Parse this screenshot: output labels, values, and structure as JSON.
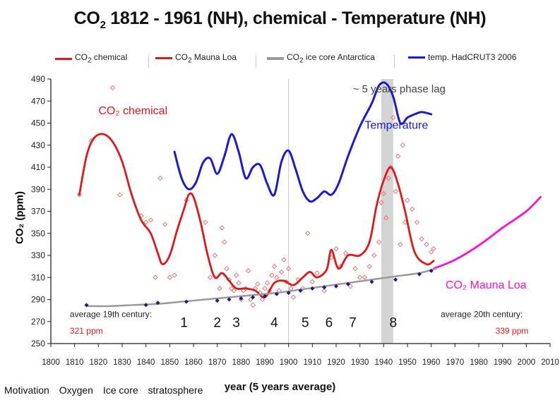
{
  "title": {
    "pre": "CO",
    "sub": "2",
    "post": " 1812 - 1961 (NH), chemical - Temperature (NH)"
  },
  "legend": [
    {
      "label_pre": "CO",
      "label_sub": "2",
      "label_post": " chemical",
      "color": "#e01818",
      "style": "line-marker"
    },
    {
      "label_pre": "CO",
      "label_sub": "2",
      "label_post": "  Mauna Loa",
      "color": "#e01818",
      "style": "line"
    },
    {
      "label_pre": "CO",
      "label_sub": "2",
      "label_post": " ice core Antarctica",
      "color": "#9a9a9a",
      "style": "line"
    },
    {
      "label_pre": "temp. HadCRUT3 2006",
      "label_sub": "",
      "label_post": "",
      "color": "#1a1ad0",
      "style": "line"
    }
  ],
  "bottom_nav": [
    "Motivation",
    "Oxygen",
    "Ice core",
    "stratosphere"
  ],
  "chart_data": {
    "type": "line",
    "xlabel": "year (5 years average)",
    "ylabel": "CO₂ (ppm)",
    "xlim": [
      1800,
      2010
    ],
    "ylim": [
      250,
      490
    ],
    "x_ticks": [
      1800,
      1810,
      1820,
      1830,
      1840,
      1850,
      1860,
      1870,
      1880,
      1890,
      1900,
      1910,
      1920,
      1930,
      1940,
      1950,
      1960,
      1970,
      1980,
      1990,
      2000,
      2010
    ],
    "y_ticks": [
      250,
      270,
      290,
      310,
      330,
      350,
      370,
      390,
      410,
      430,
      450,
      470,
      490
    ],
    "grid": false,
    "legend_position": "top",
    "series": [
      {
        "name": "CO₂ chemical",
        "color": "#e01818",
        "x": [
          1812,
          1815,
          1818,
          1822,
          1826,
          1830,
          1834,
          1838,
          1842,
          1845,
          1847,
          1850,
          1853,
          1856,
          1858,
          1860,
          1863,
          1866,
          1869,
          1872,
          1875,
          1878,
          1882,
          1886,
          1890,
          1894,
          1898,
          1902,
          1906,
          1909,
          1912,
          1916,
          1918,
          1921,
          1925,
          1930,
          1934,
          1937,
          1940,
          1943,
          1946,
          1949,
          1953,
          1958,
          1961
        ],
        "values": [
          385,
          420,
          436,
          440,
          433,
          415,
          385,
          362,
          350,
          332,
          322,
          330,
          352,
          372,
          385,
          383,
          360,
          330,
          310,
          314,
          307,
          300,
          300,
          298,
          292,
          305,
          307,
          303,
          310,
          315,
          310,
          317,
          335,
          318,
          330,
          330,
          342,
          375,
          398,
          410,
          395,
          370,
          333,
          322,
          325
        ]
      },
      {
        "name": "CO₂  Mauna Loa",
        "color": "#ff10d0",
        "x": [
          1961,
          1970,
          1980,
          1990,
          2000,
          2006
        ],
        "values": [
          318,
          326,
          339,
          355,
          370,
          383
        ]
      },
      {
        "name": "CO₂ ice core Antarctica",
        "color": "#9a9a9a",
        "x": [
          1815,
          1825,
          1835,
          1845,
          1855,
          1865,
          1875,
          1885,
          1895,
          1905,
          1915,
          1925,
          1935,
          1945,
          1955,
          1962
        ],
        "values": [
          284,
          284,
          285,
          286,
          288,
          290,
          292,
          294,
          296,
          299,
          302,
          305,
          308,
          311,
          314,
          318
        ]
      },
      {
        "name": "temp. HadCRUT3 2006",
        "color": "#1a1ad0",
        "x": [
          1852,
          1855,
          1858,
          1861,
          1864,
          1867,
          1870,
          1873,
          1876,
          1879,
          1882,
          1885,
          1888,
          1891,
          1894,
          1897,
          1900,
          1903,
          1906,
          1909,
          1912,
          1915,
          1918,
          1921,
          1925,
          1930,
          1935,
          1938,
          1941,
          1944,
          1947,
          1950,
          1953,
          1956,
          1960
        ],
        "values": [
          424,
          400,
          390,
          396,
          414,
          418,
          404,
          420,
          440,
          424,
          400,
          410,
          412,
          395,
          385,
          415,
          425,
          408,
          388,
          379,
          382,
          388,
          385,
          395,
          420,
          447,
          468,
          484,
          486,
          474,
          450,
          455,
          458,
          460,
          458
        ]
      }
    ],
    "scatter_points": {
      "name": "CO₂ chemical measurements",
      "color": "#e07070",
      "x": [
        1812,
        1817,
        1826,
        1829,
        1838,
        1840,
        1842,
        1844,
        1846,
        1848,
        1850,
        1852,
        1857,
        1865,
        1867,
        1869,
        1871,
        1872,
        1873,
        1874,
        1875,
        1876,
        1877,
        1878,
        1879,
        1880,
        1881,
        1882,
        1883,
        1884,
        1885,
        1886,
        1887,
        1888,
        1889,
        1890,
        1891,
        1892,
        1893,
        1894,
        1895,
        1896,
        1897,
        1898,
        1899,
        1900,
        1901,
        1902,
        1904,
        1906,
        1908,
        1910,
        1912,
        1915,
        1918,
        1920,
        1922,
        1924,
        1926,
        1928,
        1930,
        1932,
        1934,
        1936,
        1938,
        1939,
        1940,
        1941,
        1942,
        1943,
        1944,
        1945,
        1946,
        1947,
        1948,
        1949,
        1950,
        1952,
        1954,
        1956,
        1958,
        1960,
        1961
      ],
      "values": [
        385,
        434,
        482,
        385,
        366,
        360,
        362,
        310,
        400,
        358,
        310,
        312,
        380,
        360,
        310,
        330,
        300,
        355,
        342,
        318,
        308,
        300,
        298,
        312,
        305,
        290,
        298,
        300,
        316,
        290,
        285,
        300,
        304,
        296,
        290,
        300,
        305,
        298,
        312,
        320,
        310,
        298,
        315,
        326,
        306,
        318,
        300,
        292,
        308,
        300,
        350,
        306,
        314,
        298,
        328,
        336,
        320,
        332,
        302,
        318,
        310,
        310,
        320,
        330,
        342,
        378,
        386,
        364,
        400,
        410,
        455,
        388,
        420,
        340,
        430,
        360,
        380,
        372,
        360,
        345,
        340,
        333,
        336
      ]
    },
    "ice_core_points": {
      "color": "#1a1a80",
      "x": [
        1815,
        1840,
        1845,
        1857,
        1870,
        1875,
        1880,
        1885,
        1890,
        1895,
        1900,
        1905,
        1910,
        1915,
        1920,
        1925,
        1935,
        1945,
        1955,
        1960
      ],
      "values": [
        285,
        285,
        287,
        288,
        289,
        290,
        291,
        292,
        293,
        295,
        296,
        298,
        300,
        301,
        302,
        304,
        306,
        308,
        313,
        316
      ]
    },
    "highlight_band": {
      "x_from": 1939,
      "x_to": 1944,
      "color": "#cccccc"
    },
    "reference_line": {
      "x": 1900,
      "color": "#cfcfcf"
    },
    "annotations": [
      {
        "text": "CO₂ chemical",
        "x": 1820,
        "y": 458,
        "color": "#e01818",
        "size": 16
      },
      {
        "text": "Temperature",
        "x": 1932,
        "y": 445,
        "color": "#1a1ad0",
        "size": 16
      },
      {
        "text": "~ 5 years phase lag",
        "x": 1927,
        "y": 478,
        "color": "#444444",
        "size": 15
      },
      {
        "text": "CO₂ Mauna Loa",
        "x": 1966,
        "y": 300,
        "color": "#ff10d0",
        "size": 16
      },
      {
        "text": "average 19th century:",
        "x": 1808,
        "y": 274,
        "color": "#222222",
        "size": 12
      },
      {
        "text": "321 ppm",
        "x": 1808,
        "y": 259,
        "color": "#e01818",
        "size": 12
      },
      {
        "text": "average 20th century:",
        "x": 1964,
        "y": 274,
        "color": "#222222",
        "size": 12
      },
      {
        "text": "339 ppm",
        "x": 1987,
        "y": 259,
        "color": "#e01818",
        "size": 12
      }
    ],
    "period_labels": [
      {
        "text": "1",
        "x": 1856
      },
      {
        "text": "2",
        "x": 1870
      },
      {
        "text": "3",
        "x": 1878
      },
      {
        "text": "4",
        "x": 1894
      },
      {
        "text": "5",
        "x": 1907
      },
      {
        "text": "6",
        "x": 1917
      },
      {
        "text": "7",
        "x": 1927
      },
      {
        "text": "8",
        "x": 1944
      }
    ]
  }
}
